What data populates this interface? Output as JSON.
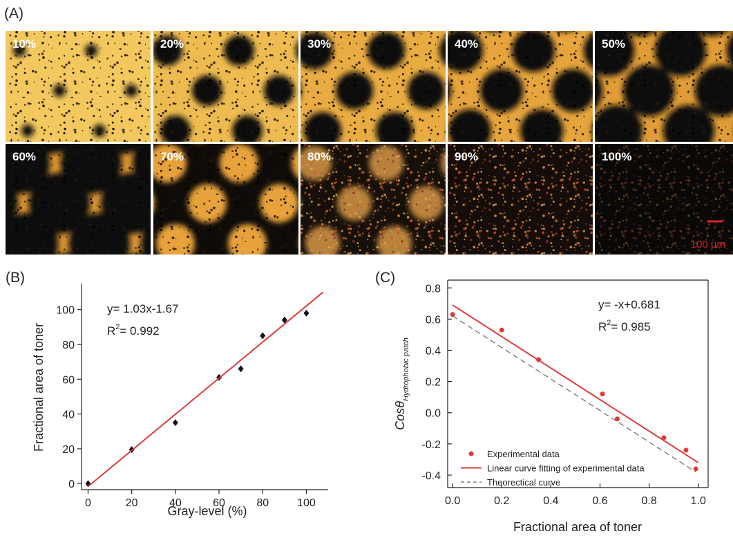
{
  "panel_a": {
    "label": "(A)",
    "tiles": [
      "10%",
      "20%",
      "30%",
      "40%",
      "50%",
      "60%",
      "70%",
      "80%",
      "90%",
      "100%"
    ],
    "scale_bar": "100 µm"
  },
  "chart_data": [
    {
      "type": "scatter",
      "panel_label": "(B)",
      "x_label": "Gray-level (%)",
      "y_label": "Fractional area of toner",
      "annotation": {
        "equation": "y= 1.03x-1.67",
        "r2_base": "R",
        "r2_sup": "2",
        "r2_value": "= 0.992"
      },
      "xlim": [
        -3,
        110
      ],
      "ylim": [
        -3.5,
        115
      ],
      "xticks": [
        0,
        20,
        40,
        60,
        80,
        100
      ],
      "yticks": [
        0,
        20,
        40,
        60,
        80,
        100
      ],
      "series": [
        {
          "kind": "scatter",
          "marker": "diamond",
          "color": "#111111",
          "x": [
            0,
            20,
            40,
            60,
            70,
            80,
            90,
            100
          ],
          "values": [
            0,
            19.5,
            35,
            61,
            66,
            85,
            94,
            98
          ]
        },
        {
          "kind": "line",
          "color": "#e03a3a",
          "x": [
            0,
            107.6
          ],
          "values": [
            -1.67,
            110
          ]
        }
      ]
    },
    {
      "type": "scatter",
      "panel_label": "(C)",
      "x_label": "Fractional area of toner",
      "y_label": "Cosθ",
      "y_label_sub": "Hydrophobic patch",
      "annotation": {
        "equation": "y= -x+0.681",
        "r2_base": "R",
        "r2_sup": "2",
        "r2_value": "= 0.985"
      },
      "frame": true,
      "xlim": [
        -0.02,
        1.04
      ],
      "ylim": [
        -0.48,
        0.85
      ],
      "xticks": [
        {
          "value": 0,
          "label": "0.0"
        },
        0.2,
        0.4,
        0.6,
        0.8,
        {
          "value": 1,
          "label": "1.0"
        }
      ],
      "yticks": [
        -0.4,
        -0.2,
        {
          "value": 0,
          "label": "0.0"
        },
        0.2,
        0.4,
        0.6,
        0.8
      ],
      "series": [
        {
          "kind": "scatter",
          "marker": "circle",
          "name": "Experimental data",
          "color": "#e03a3a",
          "x": [
            0,
            0.2,
            0.35,
            0.61,
            0.67,
            0.86,
            0.95,
            0.99
          ],
          "values": [
            0.63,
            0.53,
            0.34,
            0.12,
            -0.04,
            -0.16,
            -0.24,
            -0.36
          ]
        },
        {
          "kind": "line",
          "name": "Linear curve fitting of experimental data",
          "color": "#e03a3a",
          "x": [
            0,
            1.0
          ],
          "values": [
            0.69,
            -0.32
          ]
        },
        {
          "kind": "line",
          "dash": true,
          "name": "Theorectical curve",
          "color": "#666666",
          "x": [
            0,
            0.99
          ],
          "values": [
            0.62,
            -0.38
          ]
        }
      ]
    }
  ]
}
